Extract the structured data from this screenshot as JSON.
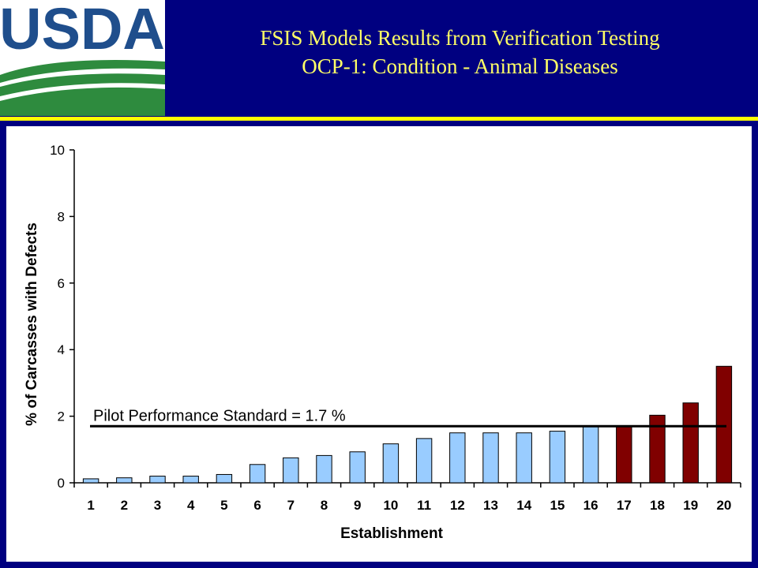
{
  "logo": {
    "text": "USDA",
    "color": "#1f4e8c",
    "accent": "#2e8b3e"
  },
  "title": {
    "line1": "FSIS Models Results from Verification Testing",
    "line2": "OCP-1: Condition - Animal Diseases",
    "color": "#ffff66"
  },
  "colors": {
    "background": "#000080",
    "rule": "#ffff00",
    "bar_pass": "#99ccff",
    "bar_fail": "#800000"
  },
  "chart_data": {
    "type": "bar",
    "title": "",
    "xlabel": "Establishment",
    "ylabel": "% of Carcasses with Defects",
    "ylim": [
      0,
      10
    ],
    "yticks": [
      0,
      2,
      4,
      6,
      8,
      10
    ],
    "grid": false,
    "categories": [
      "1",
      "2",
      "3",
      "4",
      "5",
      "6",
      "7",
      "8",
      "9",
      "10",
      "11",
      "12",
      "13",
      "14",
      "15",
      "16",
      "17",
      "18",
      "19",
      "20"
    ],
    "values": [
      0.12,
      0.15,
      0.2,
      0.2,
      0.25,
      0.55,
      0.75,
      0.82,
      0.93,
      1.17,
      1.33,
      1.5,
      1.5,
      1.5,
      1.55,
      1.7,
      1.7,
      2.03,
      2.4,
      3.5
    ],
    "bar_colors": [
      "#99ccff",
      "#99ccff",
      "#99ccff",
      "#99ccff",
      "#99ccff",
      "#99ccff",
      "#99ccff",
      "#99ccff",
      "#99ccff",
      "#99ccff",
      "#99ccff",
      "#99ccff",
      "#99ccff",
      "#99ccff",
      "#99ccff",
      "#99ccff",
      "#800000",
      "#800000",
      "#800000",
      "#800000"
    ],
    "reference_line": {
      "value": 1.7,
      "label": "Pilot Performance Standard = 1.7 %"
    }
  }
}
